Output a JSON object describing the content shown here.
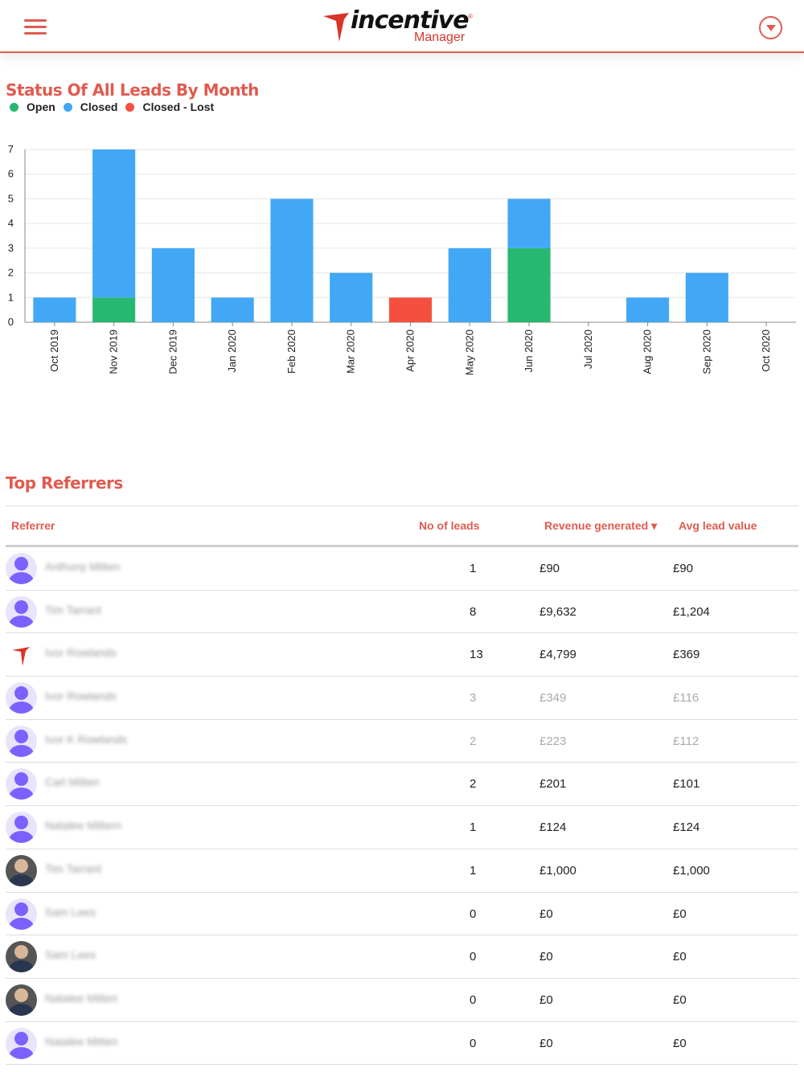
{
  "header": {
    "logo_main": "incentive",
    "logo_sub": "Manager",
    "logo_reg": "®"
  },
  "chart_section": {
    "title": "Status Of All Leads By Month",
    "legend": [
      {
        "label": "Open",
        "color": "#26b871"
      },
      {
        "label": "Closed",
        "color": "#42a8f5"
      },
      {
        "label": "Closed - Lost",
        "color": "#f44f3f"
      }
    ]
  },
  "chart_data": {
    "type": "bar",
    "stacked": true,
    "categories": [
      "Oct 2019",
      "Nov 2019",
      "Dec 2019",
      "Jan 2020",
      "Feb 2020",
      "Mar 2020",
      "Apr 2020",
      "May 2020",
      "Jun 2020",
      "Jul 2020",
      "Aug 2020",
      "Sep 2020",
      "Oct 2020"
    ],
    "series": [
      {
        "name": "Open",
        "color": "#26b871",
        "values": [
          0,
          1,
          0,
          0,
          0,
          0,
          0,
          0,
          3,
          0,
          0,
          0,
          0
        ]
      },
      {
        "name": "Closed",
        "color": "#42a8f5",
        "values": [
          1,
          6,
          3,
          1,
          5,
          2,
          0,
          3,
          2,
          0,
          1,
          2,
          0
        ]
      },
      {
        "name": "Closed - Lost",
        "color": "#f44f3f",
        "values": [
          0,
          0,
          0,
          0,
          0,
          0,
          1,
          0,
          0,
          0,
          0,
          0,
          0
        ]
      }
    ],
    "ylim": [
      0,
      7
    ],
    "yticks": [
      0,
      1,
      2,
      3,
      4,
      5,
      6,
      7
    ],
    "grid": true,
    "legend_position": "top-left"
  },
  "referrers": {
    "title": "Top Referrers",
    "columns": {
      "referrer": "Referrer",
      "leads": "No of leads",
      "revenue": "Revenue generated",
      "revenue_sort": "▾",
      "avg": "Avg lead value"
    },
    "rows": [
      {
        "name": "Anthony Mitten",
        "leads": "1",
        "revenue": "£90",
        "avg": "£90",
        "avatar": "placeholder",
        "dim": false
      },
      {
        "name": "Tim Tarrant",
        "leads": "8",
        "revenue": "£9,632",
        "avg": "£1,204",
        "avatar": "placeholder",
        "dim": false
      },
      {
        "name": "Ivor Rowlands",
        "leads": "13",
        "revenue": "£4,799",
        "avg": "£369",
        "avatar": "brand",
        "dim": false
      },
      {
        "name": "Ivor Rowlands",
        "leads": "3",
        "revenue": "£349",
        "avg": "£116",
        "avatar": "placeholder",
        "dim": true
      },
      {
        "name": "Ivor K Rowlands",
        "leads": "2",
        "revenue": "£223",
        "avg": "£112",
        "avatar": "placeholder",
        "dim": true
      },
      {
        "name": "Carl Mitten",
        "leads": "2",
        "revenue": "£201",
        "avg": "£101",
        "avatar": "placeholder",
        "dim": false
      },
      {
        "name": "Natalee Mittern",
        "leads": "1",
        "revenue": "£124",
        "avg": "£124",
        "avatar": "placeholder",
        "dim": false
      },
      {
        "name": "Tim Tarrant",
        "leads": "1",
        "revenue": "£1,000",
        "avg": "£1,000",
        "avatar": "photo",
        "dim": false
      },
      {
        "name": "Sam Lees",
        "leads": "0",
        "revenue": "£0",
        "avg": "£0",
        "avatar": "placeholder",
        "dim": false
      },
      {
        "name": "Sam Lees",
        "leads": "0",
        "revenue": "£0",
        "avg": "£0",
        "avatar": "photo",
        "dim": false
      },
      {
        "name": "Natalee Mitten",
        "leads": "0",
        "revenue": "£0",
        "avg": "£0",
        "avatar": "photo",
        "dim": false
      },
      {
        "name": "Natalee Mitten",
        "leads": "0",
        "revenue": "£0",
        "avg": "£0",
        "avatar": "placeholder",
        "dim": false
      }
    ]
  }
}
